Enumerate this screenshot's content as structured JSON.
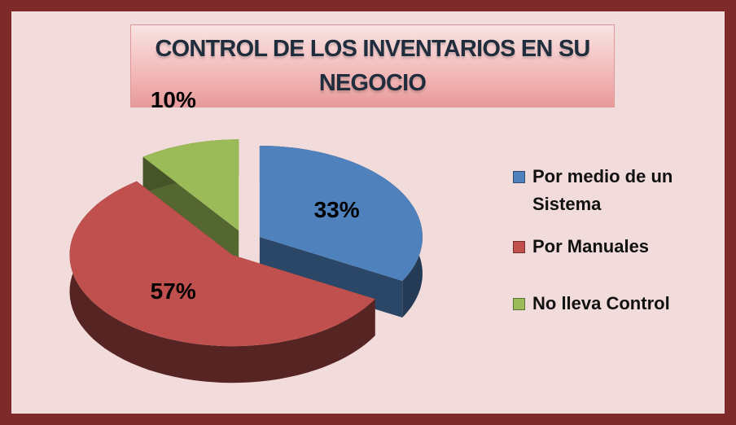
{
  "chart_data": {
    "type": "pie",
    "title": "CONTROL DE LOS INVENTARIOS EN SU NEGOCIO",
    "categories": [
      "Por medio de un Sistema",
      "Por Manuales",
      "No lleva Control"
    ],
    "values": [
      33,
      57,
      10
    ],
    "value_labels": [
      "33%",
      "57%",
      "10%"
    ],
    "colors": [
      "#4f81bd",
      "#c0504d",
      "#9bbb59"
    ],
    "legend": "right"
  }
}
